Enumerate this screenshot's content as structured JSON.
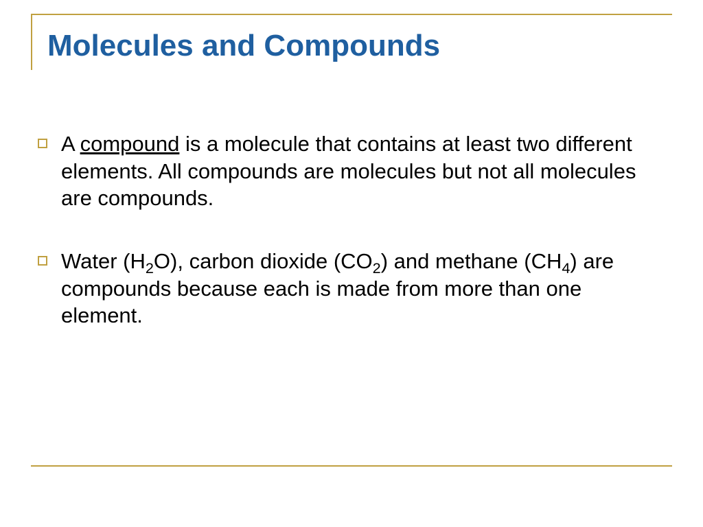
{
  "slide": {
    "title": "Molecules and Compounds",
    "title_color": "#1f5fa0",
    "title_fontsize": 44,
    "accent_color": "#c0a040",
    "body_color": "#000000",
    "body_fontsize": 31,
    "background_color": "#ffffff",
    "bullets": [
      {
        "segments": [
          {
            "text": "A "
          },
          {
            "text": "compound",
            "underline": true
          },
          {
            "text": " is a molecule that contains at least two different elements. All compounds are molecules but not all molecules are compounds."
          }
        ]
      },
      {
        "segments": [
          {
            "text": "Water (H"
          },
          {
            "text": "2",
            "sub": true
          },
          {
            "text": "O), carbon dioxide (CO"
          },
          {
            "text": "2",
            "sub": true
          },
          {
            "text": ") and methane (CH"
          },
          {
            "text": "4",
            "sub": true
          },
          {
            "text": ") are compounds because each is made from more than one element."
          }
        ]
      }
    ]
  }
}
